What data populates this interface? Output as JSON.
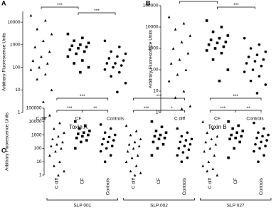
{
  "chart_data": [
    {
      "type": "scatter",
      "panel_label": "A",
      "ylabel": "Arbitrary Fluorescence Units",
      "xlabel": "Toxin A",
      "log": true,
      "ylim": [
        1,
        30000
      ],
      "yticks": [
        1,
        10,
        100,
        1000,
        10000
      ],
      "rotate_labels": false,
      "color": "#000000",
      "groups": [
        {
          "series": [
            {
              "name": "C diff",
              "marker": "triangle",
              "values": [
                20000,
                12000,
                5000,
                3000,
                1500,
                800,
                500,
                300,
                200,
                150,
                100,
                80,
                50,
                30,
                10,
                3
              ]
            },
            {
              "name": "CF",
              "marker": "square",
              "values": [
                3000,
                2000,
                1500,
                1200,
                1000,
                900,
                800,
                700,
                600,
                500,
                400,
                300,
                200,
                150,
                100,
                60
              ]
            },
            {
              "name": "Controls",
              "marker": "circle",
              "values": [
                1500,
                800,
                500,
                400,
                300,
                250,
                200,
                150,
                150,
                120,
                100,
                80,
                60,
                40,
                20,
                8
              ]
            }
          ],
          "comparisons": [
            {
              "pair": [
                "C diff",
                "CF"
              ],
              "label": "***"
            },
            {
              "pair": [
                "CF",
                "Controls"
              ],
              "label": "***"
            }
          ]
        }
      ]
    },
    {
      "type": "scatter",
      "panel_label": "B",
      "ylabel": "Arbitrary Fluorescence Units",
      "xlabel": "Toxin B",
      "log": true,
      "ylim": [
        1,
        100000
      ],
      "yticks": [
        1,
        10,
        100,
        1000,
        10000,
        100000
      ],
      "rotate_labels": false,
      "color": "#000000",
      "groups": [
        {
          "series": [
            {
              "name": "C diff",
              "marker": "triangle",
              "values": [
                30000,
                15000,
                8000,
                4000,
                2000,
                1000,
                600,
                300,
                200,
                100,
                60,
                30,
                10,
                5,
                2,
                1.5
              ]
            },
            {
              "name": "CF",
              "marker": "square",
              "values": [
                20000,
                10000,
                6000,
                4000,
                3000,
                2500,
                2000,
                1800,
                1500,
                1200,
                1000,
                800,
                600,
                300,
                100,
                30
              ]
            },
            {
              "name": "Controls",
              "marker": "circle",
              "values": [
                3000,
                1500,
                1000,
                700,
                500,
                400,
                300,
                250,
                200,
                150,
                100,
                80,
                50,
                30,
                20,
                8
              ]
            }
          ],
          "comparisons": [
            {
              "pair": [
                "C diff",
                "CF"
              ],
              "label": "***"
            },
            {
              "pair": [
                "CF",
                "Controls"
              ],
              "label": "***"
            }
          ]
        }
      ]
    },
    {
      "type": "scatter",
      "panel_label": "C",
      "ylabel": "Arbitrary Fluorescence Units",
      "log": true,
      "ylim": [
        1,
        100000
      ],
      "yticks": [
        1,
        10,
        100,
        1000,
        10000,
        100000
      ],
      "rotate_labels": true,
      "color": "#000000",
      "groups": [
        {
          "name": "SLP 001",
          "series": [
            {
              "name": "C diff",
              "marker": "triangle",
              "values": [
                30000,
                8000,
                3000,
                1500,
                800,
                500,
                300,
                200,
                150,
                100,
                60,
                30,
                10,
                5,
                2,
                1
              ]
            },
            {
              "name": "CF",
              "marker": "square",
              "values": [
                10000,
                5000,
                3000,
                2000,
                1500,
                1200,
                1000,
                800,
                600,
                400,
                300,
                100
              ]
            },
            {
              "name": "Controls",
              "marker": "circle",
              "values": [
                6000,
                3000,
                1500,
                1000,
                700,
                500,
                400,
                300,
                200,
                150,
                100,
                60,
                30,
                10
              ]
            }
          ],
          "comparisons": [
            {
              "pair": [
                "C diff",
                "Controls"
              ],
              "label": "***"
            },
            {
              "pair": [
                "C diff",
                "CF"
              ],
              "label": "***"
            },
            {
              "pair": [
                "CF",
                "Controls"
              ],
              "label": "**"
            }
          ]
        },
        {
          "name": "SLP 002",
          "series": [
            {
              "name": "C diff",
              "marker": "triangle",
              "values": [
                5000,
                2000,
                1000,
                500,
                300,
                200,
                150,
                100,
                60,
                30,
                20,
                10,
                5,
                2,
                1.5,
                1
              ]
            },
            {
              "name": "CF",
              "marker": "square",
              "values": [
                10000,
                4000,
                2000,
                1500,
                1000,
                800,
                600,
                500,
                300,
                200,
                100,
                30
              ]
            },
            {
              "name": "Controls",
              "marker": "circle",
              "values": [
                3000,
                1500,
                800,
                500,
                400,
                300,
                200,
                150,
                100,
                80,
                50,
                30,
                20,
                10
              ]
            }
          ],
          "comparisons": [
            {
              "pair": [
                "C diff",
                "Controls"
              ],
              "label": "***"
            },
            {
              "pair": [
                "C diff",
                "CF"
              ],
              "label": "***"
            },
            {
              "pair": [
                "CF",
                "Controls"
              ],
              "label": "*"
            }
          ]
        },
        {
          "name": "SLP 027",
          "series": [
            {
              "name": "C diff",
              "marker": "triangle",
              "values": [
                10000,
                3000,
                1500,
                800,
                500,
                300,
                200,
                100,
                60,
                30,
                10,
                5,
                3,
                2,
                1
              ]
            },
            {
              "name": "CF",
              "marker": "square",
              "values": [
                10000,
                5000,
                3000,
                2000,
                1500,
                1000,
                800,
                600,
                500,
                300,
                100,
                20
              ]
            },
            {
              "name": "Controls",
              "marker": "circle",
              "values": [
                8000,
                3000,
                1500,
                1000,
                800,
                600,
                400,
                300,
                200,
                150,
                100,
                60,
                30,
                10
              ]
            }
          ],
          "comparisons": [
            {
              "pair": [
                "C diff",
                "Controls"
              ],
              "label": "***"
            },
            {
              "pair": [
                "C diff",
                "CF"
              ],
              "label": "***"
            },
            {
              "pair": [
                "CF",
                "Controls"
              ],
              "label": "**"
            }
          ]
        }
      ]
    }
  ]
}
